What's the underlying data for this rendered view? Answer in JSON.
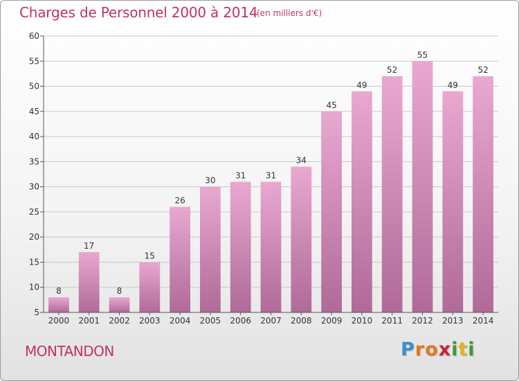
{
  "header": {
    "title": "Charges de Personnel 2000 à 2014",
    "unit": "(en milliers d'€)"
  },
  "footer": {
    "commune": "MONTANDON",
    "logo_letters": [
      "P",
      "r",
      "o",
      "x",
      "i",
      "t",
      "i"
    ],
    "logo_colors": [
      "#3a8fd0",
      "#e07a1f",
      "#e07a1f",
      "#c8233a",
      "#3a9a3a",
      "#e0b21f",
      "#3a9a3a"
    ]
  },
  "colors": {
    "title": "#c0306a",
    "bar_top": "#e8a8d0",
    "bar_bottom": "#b06a98",
    "axis": "#555555",
    "grid": "#c8c8c8"
  },
  "chart_data": {
    "type": "bar",
    "title": "Charges de Personnel 2000 à 2014",
    "subtitle": "(en milliers d'€)",
    "xlabel": "",
    "ylabel": "",
    "categories": [
      "2000",
      "2001",
      "2002",
      "2003",
      "2004",
      "2005",
      "2006",
      "2007",
      "2008",
      "2009",
      "2010",
      "2011",
      "2012",
      "2013",
      "2014"
    ],
    "values": [
      8,
      17,
      8,
      15,
      26,
      30,
      31,
      31,
      34,
      45,
      49,
      52,
      55,
      49,
      52
    ],
    "ylim": [
      5,
      60
    ],
    "yticks": [
      5,
      10,
      15,
      20,
      25,
      30,
      35,
      40,
      45,
      50,
      55,
      60
    ],
    "grid": true,
    "legend": "none"
  }
}
